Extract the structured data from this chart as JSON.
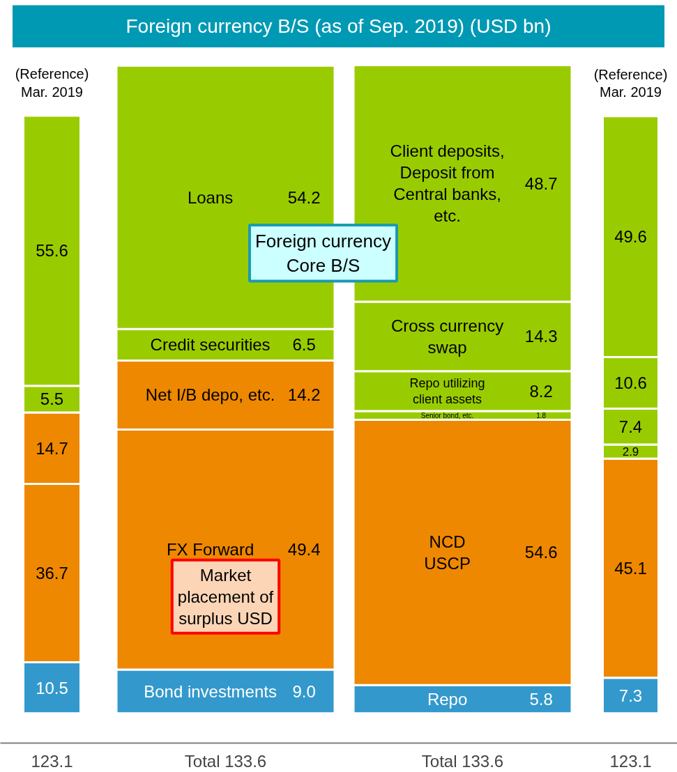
{
  "chart_data": {
    "type": "bar",
    "stacked": true,
    "title": "Foreign currency B/S (as of Sep. 2019) (USD bn)",
    "categories": [
      "(Reference)\nMar. 2019",
      null,
      null,
      "(Reference)\nMar. 2019"
    ],
    "series": [
      {
        "color": "#3399cc",
        "values": [
          10.5,
          9.0,
          5.8,
          7.3
        ],
        "value_labels": [
          "10.5",
          "Bond investments 9.0",
          "Repo 5.8",
          "7.3"
        ]
      },
      {
        "color": "#ee8800",
        "values": [
          36.7,
          49.4,
          54.6,
          45.1
        ],
        "value_labels": [
          "36.7",
          "FX Forward 49.4",
          "NCD\nUSCP 54.6",
          "45.1"
        ]
      },
      {
        "colors": [
          "#ee8800",
          "#ee8800",
          "#99cc00",
          "#99cc00"
        ],
        "values": [
          14.7,
          14.2,
          1.8,
          2.9
        ],
        "value_labels": [
          "14.7",
          "Net I/B depo, etc. 14.2",
          "Senior bond, etc. 1.8",
          "2.9"
        ]
      },
      {
        "color": "#99cc00",
        "values": [
          5.5,
          6.5,
          8.2,
          7.4
        ],
        "value_labels": [
          "5.5",
          "Credit securities 6.5",
          "Repo utilizing\nclient assets 8.2",
          "7.4"
        ]
      },
      {
        "color": "#99cc00",
        "values": [
          55.6,
          54.2,
          14.3,
          10.6
        ],
        "value_labels": [
          "55.6",
          "Loans 54.2",
          "Cross currency\nswap 14.3",
          "10.6"
        ]
      },
      {
        "color": "#99cc00",
        "values": [
          null,
          null,
          48.7,
          49.6
        ],
        "value_labels": [
          null,
          null,
          "Client deposits,\nDeposit from\nCentral banks,\netc. 48.7",
          "49.6"
        ]
      }
    ],
    "totals": [
      "123.1",
      "Total 133.6",
      "Total 133.6",
      "123.1"
    ],
    "annotations": [
      "Foreign currency\nCore B/S",
      "Market\nplacement of\nsurplus USD"
    ]
  }
}
